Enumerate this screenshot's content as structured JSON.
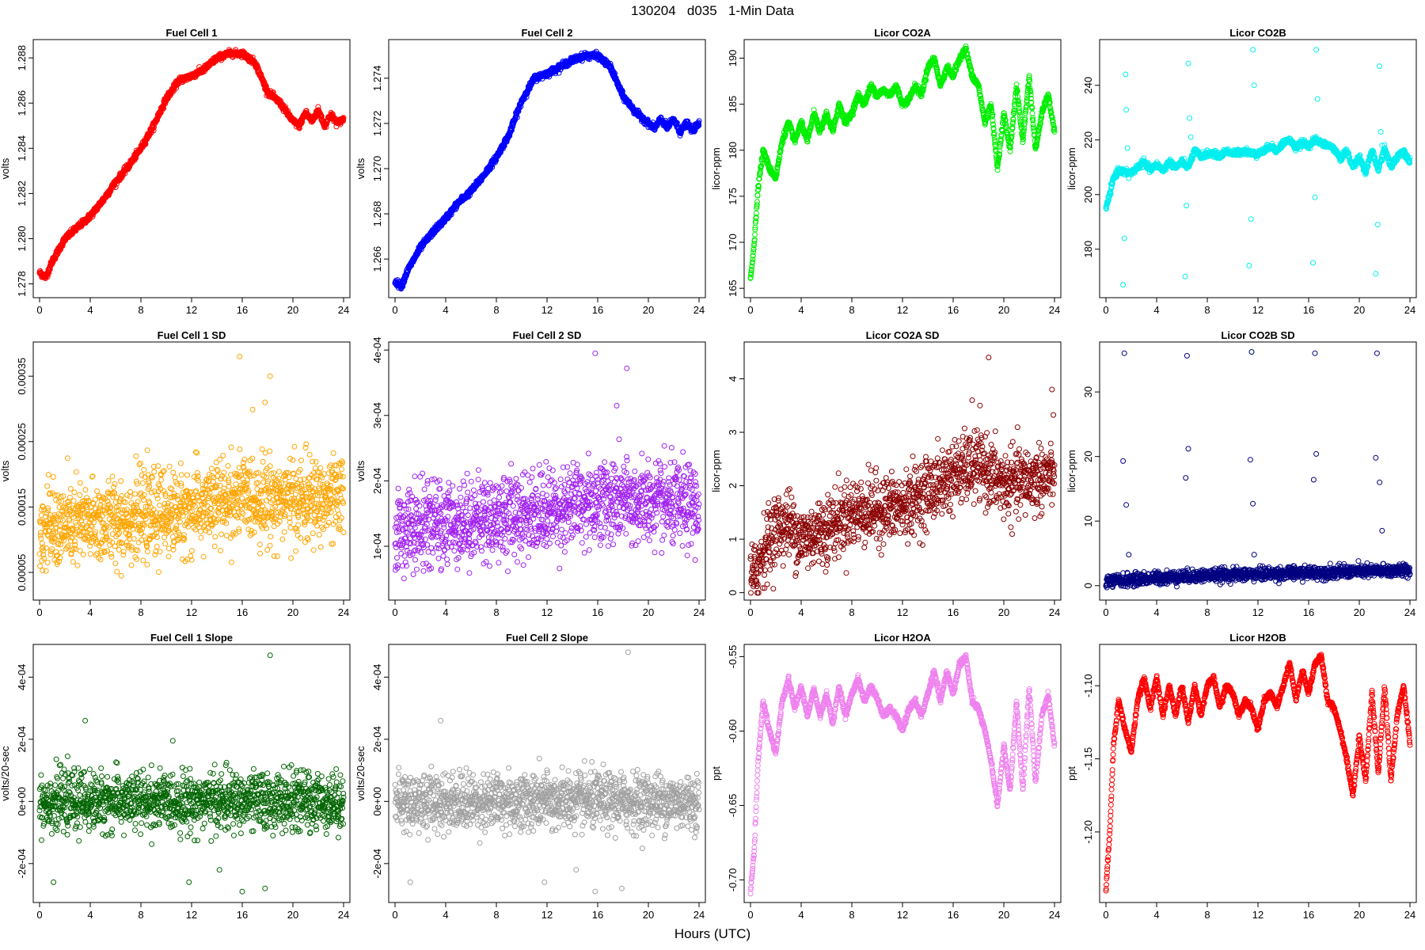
{
  "page": {
    "title": "130204   d035   1-Min Data",
    "xlabel": "Hours (UTC)"
  },
  "chart_data": [
    {
      "type": "scatter",
      "title": "Fuel Cell 1",
      "ylabel": "volts",
      "color": "#ff0000",
      "xlim": [
        0,
        24
      ],
      "ylim": [
        1.2776,
        1.2886
      ],
      "xticks": [
        0,
        4,
        8,
        12,
        16,
        20,
        24
      ],
      "yticks": [
        1.278,
        1.28,
        1.282,
        1.284,
        1.286,
        1.288
      ],
      "ytick_labels": [
        "1.278",
        "1.280",
        "1.282",
        "1.284",
        "1.286",
        "1.288"
      ],
      "x": [
        0,
        0.5,
        1,
        2,
        3,
        4,
        5,
        6,
        7,
        8,
        9,
        10,
        11,
        12,
        13,
        14,
        15,
        16,
        17,
        18,
        19,
        20,
        20.5,
        21,
        21.5,
        22,
        22.5,
        23,
        23.5,
        24
      ],
      "y": [
        1.2785,
        1.2783,
        1.279,
        1.28,
        1.2805,
        1.281,
        1.2817,
        1.2825,
        1.2832,
        1.284,
        1.285,
        1.2862,
        1.287,
        1.2872,
        1.2875,
        1.288,
        1.2882,
        1.2882,
        1.2878,
        1.2865,
        1.286,
        1.2852,
        1.285,
        1.2856,
        1.2852,
        1.2857,
        1.285,
        1.2855,
        1.2851,
        1.2853
      ],
      "style": "dense-line"
    },
    {
      "type": "scatter",
      "title": "Fuel Cell 2",
      "ylabel": "volts",
      "color": "#0000ff",
      "xlim": [
        0,
        24
      ],
      "ylim": [
        1.2645,
        1.2755
      ],
      "xticks": [
        0,
        4,
        8,
        12,
        16,
        20,
        24
      ],
      "yticks": [
        1.266,
        1.268,
        1.27,
        1.272,
        1.274
      ],
      "ytick_labels": [
        "1.266",
        "1.268",
        "1.270",
        "1.272",
        "1.274"
      ],
      "x": [
        0,
        0.5,
        1,
        2,
        3,
        4,
        5,
        6,
        7,
        8,
        9,
        10,
        11,
        12,
        13,
        14,
        15,
        16,
        17,
        18,
        19,
        20,
        20.5,
        21,
        21.5,
        22,
        22.5,
        23,
        23.5,
        24
      ],
      "y": [
        1.265,
        1.2648,
        1.2655,
        1.2665,
        1.2672,
        1.2678,
        1.2685,
        1.269,
        1.2697,
        1.2705,
        1.2715,
        1.273,
        1.274,
        1.2742,
        1.2745,
        1.2748,
        1.275,
        1.275,
        1.2745,
        1.2732,
        1.2725,
        1.272,
        1.2718,
        1.2722,
        1.2718,
        1.2722,
        1.2716,
        1.272,
        1.2717,
        1.272
      ],
      "style": "dense-line"
    },
    {
      "type": "scatter",
      "title": "Licor CO2A",
      "ylabel": "licor-ppm",
      "color": "#00ee00",
      "xlim": [
        0,
        24
      ],
      "ylim": [
        164.5,
        191.5
      ],
      "xticks": [
        0,
        4,
        8,
        12,
        16,
        20,
        24
      ],
      "yticks": [
        165,
        170,
        175,
        180,
        185,
        190
      ],
      "ytick_labels": [
        "165",
        "170",
        "175",
        "180",
        "185",
        "190"
      ],
      "x": [
        0,
        0.3,
        0.6,
        1,
        1.5,
        2,
        2.5,
        3,
        3.5,
        4,
        4.5,
        5,
        5.5,
        6,
        6.5,
        7,
        7.5,
        8,
        8.5,
        9,
        9.5,
        10,
        10.5,
        11,
        11.5,
        12,
        12.5,
        13,
        13.5,
        14,
        14.5,
        15,
        15.5,
        16,
        16.5,
        17,
        17.5,
        18,
        18.5,
        19,
        19.5,
        20,
        20.5,
        21,
        21.5,
        22,
        22.5,
        23,
        23.5,
        24
      ],
      "y": [
        166,
        170,
        176,
        180,
        178,
        177,
        181,
        183,
        181,
        183,
        181,
        184,
        182,
        184,
        182,
        185,
        183,
        184,
        186,
        185,
        187,
        186,
        186.5,
        186,
        187,
        185,
        185.5,
        187,
        186,
        189,
        190,
        187,
        189,
        188,
        190,
        191,
        188,
        187,
        183,
        185,
        178,
        184,
        180,
        187,
        181,
        188,
        180,
        184,
        186,
        182
      ],
      "style": "dense-line"
    },
    {
      "type": "scatter",
      "title": "Licor CO2B",
      "ylabel": "licor-ppm",
      "color": "#00eeee",
      "xlim": [
        0,
        24
      ],
      "ylim": [
        164,
        255
      ],
      "xticks": [
        0,
        4,
        8,
        12,
        16,
        20,
        24
      ],
      "yticks": [
        180,
        200,
        220,
        240
      ],
      "ytick_labels": [
        "180",
        "200",
        "220",
        "240"
      ],
      "x": [
        0,
        0.3,
        0.6,
        1,
        1.5,
        2,
        2.5,
        3,
        3.5,
        4,
        4.5,
        5,
        5.5,
        6,
        6.5,
        7,
        7.5,
        8,
        8.5,
        9,
        9.5,
        10,
        10.5,
        11,
        11.5,
        12,
        12.5,
        13,
        13.5,
        14,
        14.5,
        15,
        15.5,
        16,
        16.5,
        17,
        17.5,
        18,
        18.5,
        19,
        19.5,
        20,
        20.5,
        21,
        21.5,
        22,
        22.5,
        23,
        23.5,
        24
      ],
      "y": [
        195,
        200,
        206,
        209,
        208,
        208,
        210,
        212,
        209,
        211,
        209,
        212,
        210,
        212,
        210,
        216,
        214,
        215,
        215,
        214,
        216,
        215,
        215.5,
        216,
        215,
        215,
        216,
        218,
        216,
        219,
        220,
        217,
        219,
        218,
        220,
        219,
        218,
        217,
        213,
        216,
        210,
        214,
        208,
        216,
        209,
        217,
        210,
        214,
        216,
        212
      ],
      "outliers_x": [
        1.35,
        1.45,
        1.55,
        1.6,
        1.7,
        1.8,
        6.25,
        6.35,
        6.5,
        6.6,
        6.7,
        11.3,
        11.45,
        11.6,
        11.7,
        16.35,
        16.5,
        16.6,
        16.7,
        21.3,
        21.45,
        21.6,
        21.7,
        21.8
      ],
      "outliers_y": [
        167,
        184,
        244,
        231,
        217,
        206,
        170,
        196,
        248,
        228,
        221,
        174,
        191,
        253,
        240,
        175,
        199,
        253,
        235,
        171,
        189,
        247,
        223,
        218
      ],
      "style": "dense-line"
    },
    {
      "type": "scatter",
      "title": "Fuel Cell 1 SD",
      "ylabel": "volts",
      "color": "#ffa500",
      "xlim": [
        0,
        24
      ],
      "ylim": [
        1.5e-05,
        0.000395
      ],
      "xticks": [
        0,
        4,
        8,
        12,
        16,
        20,
        24
      ],
      "yticks": [
        5e-05,
        0.00015,
        0.00025,
        0.00035
      ],
      "ytick_labels": [
        "0.00005",
        "0.00015",
        "0.00025",
        "0.00035"
      ],
      "trend_x": [
        0,
        4,
        8,
        12,
        16,
        20,
        24
      ],
      "trend_y": [
        0.000115,
        0.000125,
        0.000135,
        0.000145,
        0.000165,
        0.00016,
        0.00016
      ],
      "spread": 9e-05,
      "outliers_x": [
        15.8,
        18.2,
        17.8
      ],
      "outliers_y": [
        0.00038,
        0.00035,
        0.00031
      ],
      "style": "noisy"
    },
    {
      "type": "scatter",
      "title": "Fuel Cell 2 SD",
      "ylabel": "volts",
      "color": "#a020f0",
      "xlim": [
        0,
        24
      ],
      "ylim": [
        2.5e-05,
        0.000405
      ],
      "xticks": [
        0,
        4,
        8,
        12,
        16,
        20,
        24
      ],
      "yticks": [
        0.0001,
        0.0002,
        0.0003,
        0.0004
      ],
      "ytick_labels": [
        "1e-04",
        "2e-04",
        "3e-04",
        "4e-04"
      ],
      "trend_x": [
        0,
        4,
        8,
        12,
        16,
        20,
        24
      ],
      "trend_y": [
        0.000125,
        0.000135,
        0.000145,
        0.000155,
        0.00017,
        0.000165,
        0.00016
      ],
      "spread": 9e-05,
      "outliers_x": [
        15.8,
        18.3,
        17.5
      ],
      "outliers_y": [
        0.000395,
        0.000372,
        0.000315
      ],
      "style": "noisy"
    },
    {
      "type": "scatter",
      "title": "Licor CO2A SD",
      "ylabel": "licor-ppm",
      "color": "#8b0000",
      "xlim": [
        0,
        24
      ],
      "ylim": [
        -0.05,
        4.6
      ],
      "xticks": [
        0,
        4,
        8,
        12,
        16,
        20,
        24
      ],
      "yticks": [
        0,
        1,
        2,
        3,
        4
      ],
      "ytick_labels": [
        "0",
        "1",
        "2",
        "3",
        "4"
      ],
      "trend_x": [
        0,
        0.5,
        1,
        2,
        3,
        4,
        6,
        8,
        12,
        16,
        18,
        20,
        24
      ],
      "trend_y": [
        0.2,
        0.4,
        0.8,
        1.2,
        1.3,
        1.0,
        1.2,
        1.5,
        1.6,
        2.2,
        2.4,
        2.0,
        2.2
      ],
      "spread": 0.9,
      "outliers_x": [
        18.8,
        23.8,
        17.5
      ],
      "outliers_y": [
        4.4,
        3.8,
        3.6
      ],
      "style": "noisy"
    },
    {
      "type": "scatter",
      "title": "Licor CO2B SD",
      "ylabel": "licor-ppm",
      "color": "#000080",
      "xlim": [
        0,
        24
      ],
      "ylim": [
        -1.5,
        37
      ],
      "xticks": [
        0,
        4,
        8,
        12,
        16,
        20,
        24
      ],
      "yticks": [
        0,
        10,
        20,
        30
      ],
      "ytick_labels": [
        "0",
        "10",
        "20",
        "30"
      ],
      "trend_x": [
        0,
        4,
        8,
        12,
        16,
        20,
        24
      ],
      "trend_y": [
        0.6,
        1.2,
        1.6,
        1.8,
        2.0,
        2.2,
        2.4
      ],
      "spread": 1.4,
      "outliers_x": [
        1.45,
        1.35,
        1.6,
        1.8,
        6.4,
        6.3,
        6.5,
        11.5,
        11.4,
        11.6,
        11.7,
        16.5,
        16.4,
        16.6,
        21.4,
        21.3,
        21.6,
        21.8
      ],
      "outliers_y": [
        36,
        19.3,
        12.5,
        4.8,
        35.6,
        16.7,
        21.2,
        36.2,
        19.5,
        12.7,
        4.8,
        36,
        16.4,
        20.4,
        36,
        19.8,
        16,
        8.5
      ],
      "style": "noisy"
    },
    {
      "type": "scatter",
      "title": "Fuel Cell 1 Slope",
      "ylabel": "volts/20-sec",
      "color": "#006400",
      "xlim": [
        0,
        24
      ],
      "ylim": [
        -0.00031,
        0.00049
      ],
      "xticks": [
        0,
        4,
        8,
        12,
        16,
        20,
        24
      ],
      "yticks": [
        -0.0002,
        0,
        0.0002,
        0.0004
      ],
      "ytick_labels": [
        "-2e-04",
        "0e+00",
        "2e-04",
        "4e-04"
      ],
      "trend_x": [
        0,
        24
      ],
      "trend_y": [
        0.0,
        0.0
      ],
      "spread": 0.00013,
      "outliers_x": [
        18.2,
        3.6,
        1.1,
        11.8,
        14.2,
        16.0,
        17.8
      ],
      "outliers_y": [
        0.00047,
        0.00026,
        -0.00026,
        -0.00026,
        -0.00022,
        -0.00029,
        -0.00028
      ],
      "style": "noisy"
    },
    {
      "type": "scatter",
      "title": "Fuel Cell 2 Slope",
      "ylabel": "volts/20-sec",
      "color": "#a0a0a0",
      "xlim": [
        0,
        24
      ],
      "ylim": [
        -0.00031,
        0.00049
      ],
      "xticks": [
        0,
        4,
        8,
        12,
        16,
        20,
        24
      ],
      "yticks": [
        -0.0002,
        0,
        0.0002,
        0.0004
      ],
      "ytick_labels": [
        "-2e-04",
        "0e+00",
        "2e-04",
        "4e-04"
      ],
      "trend_x": [
        0,
        24
      ],
      "trend_y": [
        0.0,
        0.0
      ],
      "spread": 0.00013,
      "outliers_x": [
        18.4,
        3.6,
        1.2,
        11.8,
        14.3,
        15.8,
        17.9
      ],
      "outliers_y": [
        0.00048,
        0.00026,
        -0.00026,
        -0.00026,
        -0.00022,
        -0.00029,
        -0.00028
      ],
      "style": "noisy"
    },
    {
      "type": "scatter",
      "title": "Licor H2OA",
      "ylabel": "ppt",
      "color": "#ee82ee",
      "xlim": [
        0,
        24
      ],
      "ylim": [
        -0.712,
        -0.545
      ],
      "xticks": [
        0,
        4,
        8,
        12,
        16,
        20,
        24
      ],
      "yticks": [
        -0.7,
        -0.65,
        -0.6,
        -0.55
      ],
      "ytick_labels": [
        "-0.70",
        "-0.65",
        "-0.60",
        "-0.55"
      ],
      "x": [
        0,
        0.3,
        0.6,
        1,
        1.5,
        2,
        2.5,
        3,
        3.5,
        4,
        4.5,
        5,
        5.5,
        6,
        6.5,
        7,
        7.5,
        8,
        8.5,
        9,
        9.5,
        10,
        10.5,
        11,
        11.5,
        12,
        12.5,
        13,
        13.5,
        14,
        14.5,
        15,
        15.5,
        16,
        16.5,
        17,
        17.5,
        18,
        18.5,
        19,
        19.5,
        20,
        20.5,
        21,
        21.5,
        22,
        22.5,
        23,
        23.5,
        24
      ],
      "y": [
        -0.708,
        -0.68,
        -0.62,
        -0.58,
        -0.6,
        -0.615,
        -0.58,
        -0.565,
        -0.585,
        -0.57,
        -0.59,
        -0.572,
        -0.59,
        -0.575,
        -0.595,
        -0.57,
        -0.59,
        -0.575,
        -0.565,
        -0.58,
        -0.57,
        -0.578,
        -0.59,
        -0.585,
        -0.59,
        -0.6,
        -0.585,
        -0.58,
        -0.59,
        -0.575,
        -0.56,
        -0.58,
        -0.56,
        -0.575,
        -0.555,
        -0.55,
        -0.58,
        -0.585,
        -0.6,
        -0.62,
        -0.65,
        -0.61,
        -0.64,
        -0.58,
        -0.64,
        -0.57,
        -0.635,
        -0.59,
        -0.575,
        -0.61
      ],
      "style": "dense-line"
    },
    {
      "type": "scatter",
      "title": "Licor H2OB",
      "ylabel": "ppt",
      "color": "#ff0000",
      "xlim": [
        0,
        24
      ],
      "ylim": [
        -1.245,
        -1.075
      ],
      "xticks": [
        0,
        4,
        8,
        12,
        16,
        20,
        24
      ],
      "yticks": [
        -1.2,
        -1.15,
        -1.1
      ],
      "ytick_labels": [
        "-1.20",
        "-1.15",
        "-1.10"
      ],
      "x": [
        0,
        0.3,
        0.6,
        1,
        1.5,
        2,
        2.5,
        3,
        3.5,
        4,
        4.5,
        5,
        5.5,
        6,
        6.5,
        7,
        7.5,
        8,
        8.5,
        9,
        9.5,
        10,
        10.5,
        11,
        11.5,
        12,
        12.5,
        13,
        13.5,
        14,
        14.5,
        15,
        15.5,
        16,
        16.5,
        17,
        17.5,
        18,
        18.5,
        19,
        19.5,
        20,
        20.5,
        21,
        21.5,
        22,
        22.5,
        23,
        23.5,
        24
      ],
      "y": [
        -1.24,
        -1.2,
        -1.14,
        -1.11,
        -1.13,
        -1.145,
        -1.11,
        -1.095,
        -1.115,
        -1.095,
        -1.12,
        -1.1,
        -1.12,
        -1.1,
        -1.125,
        -1.1,
        -1.12,
        -1.1,
        -1.095,
        -1.115,
        -1.1,
        -1.105,
        -1.12,
        -1.11,
        -1.115,
        -1.13,
        -1.11,
        -1.105,
        -1.115,
        -1.1,
        -1.085,
        -1.11,
        -1.09,
        -1.105,
        -1.085,
        -1.08,
        -1.11,
        -1.115,
        -1.13,
        -1.15,
        -1.175,
        -1.135,
        -1.165,
        -1.105,
        -1.16,
        -1.1,
        -1.165,
        -1.12,
        -1.1,
        -1.14
      ],
      "style": "dense-line"
    }
  ]
}
